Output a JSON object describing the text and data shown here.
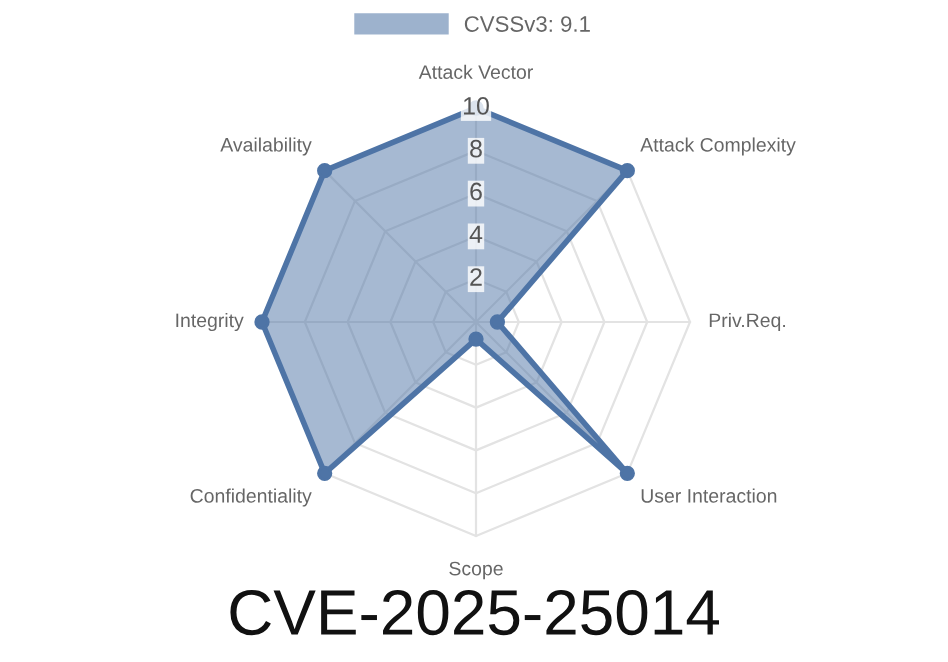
{
  "chart_data": {
    "type": "radar",
    "title": "CVE-2025-25014",
    "categories": [
      "Attack Vector",
      "Attack Complexity",
      "Priv.Req.",
      "User Interaction",
      "Scope",
      "Confidentiality",
      "Integrity",
      "Availability"
    ],
    "series": [
      {
        "name": "CVSSv3: 9.1",
        "color": "#4e74a6",
        "values": [
          10,
          10,
          1,
          10,
          0.8,
          10,
          10,
          10
        ]
      }
    ],
    "ylim": [
      0,
      10
    ],
    "yticks": [
      2,
      4,
      6,
      8,
      10
    ],
    "grid": true,
    "legend": "top",
    "marker": "circle"
  }
}
